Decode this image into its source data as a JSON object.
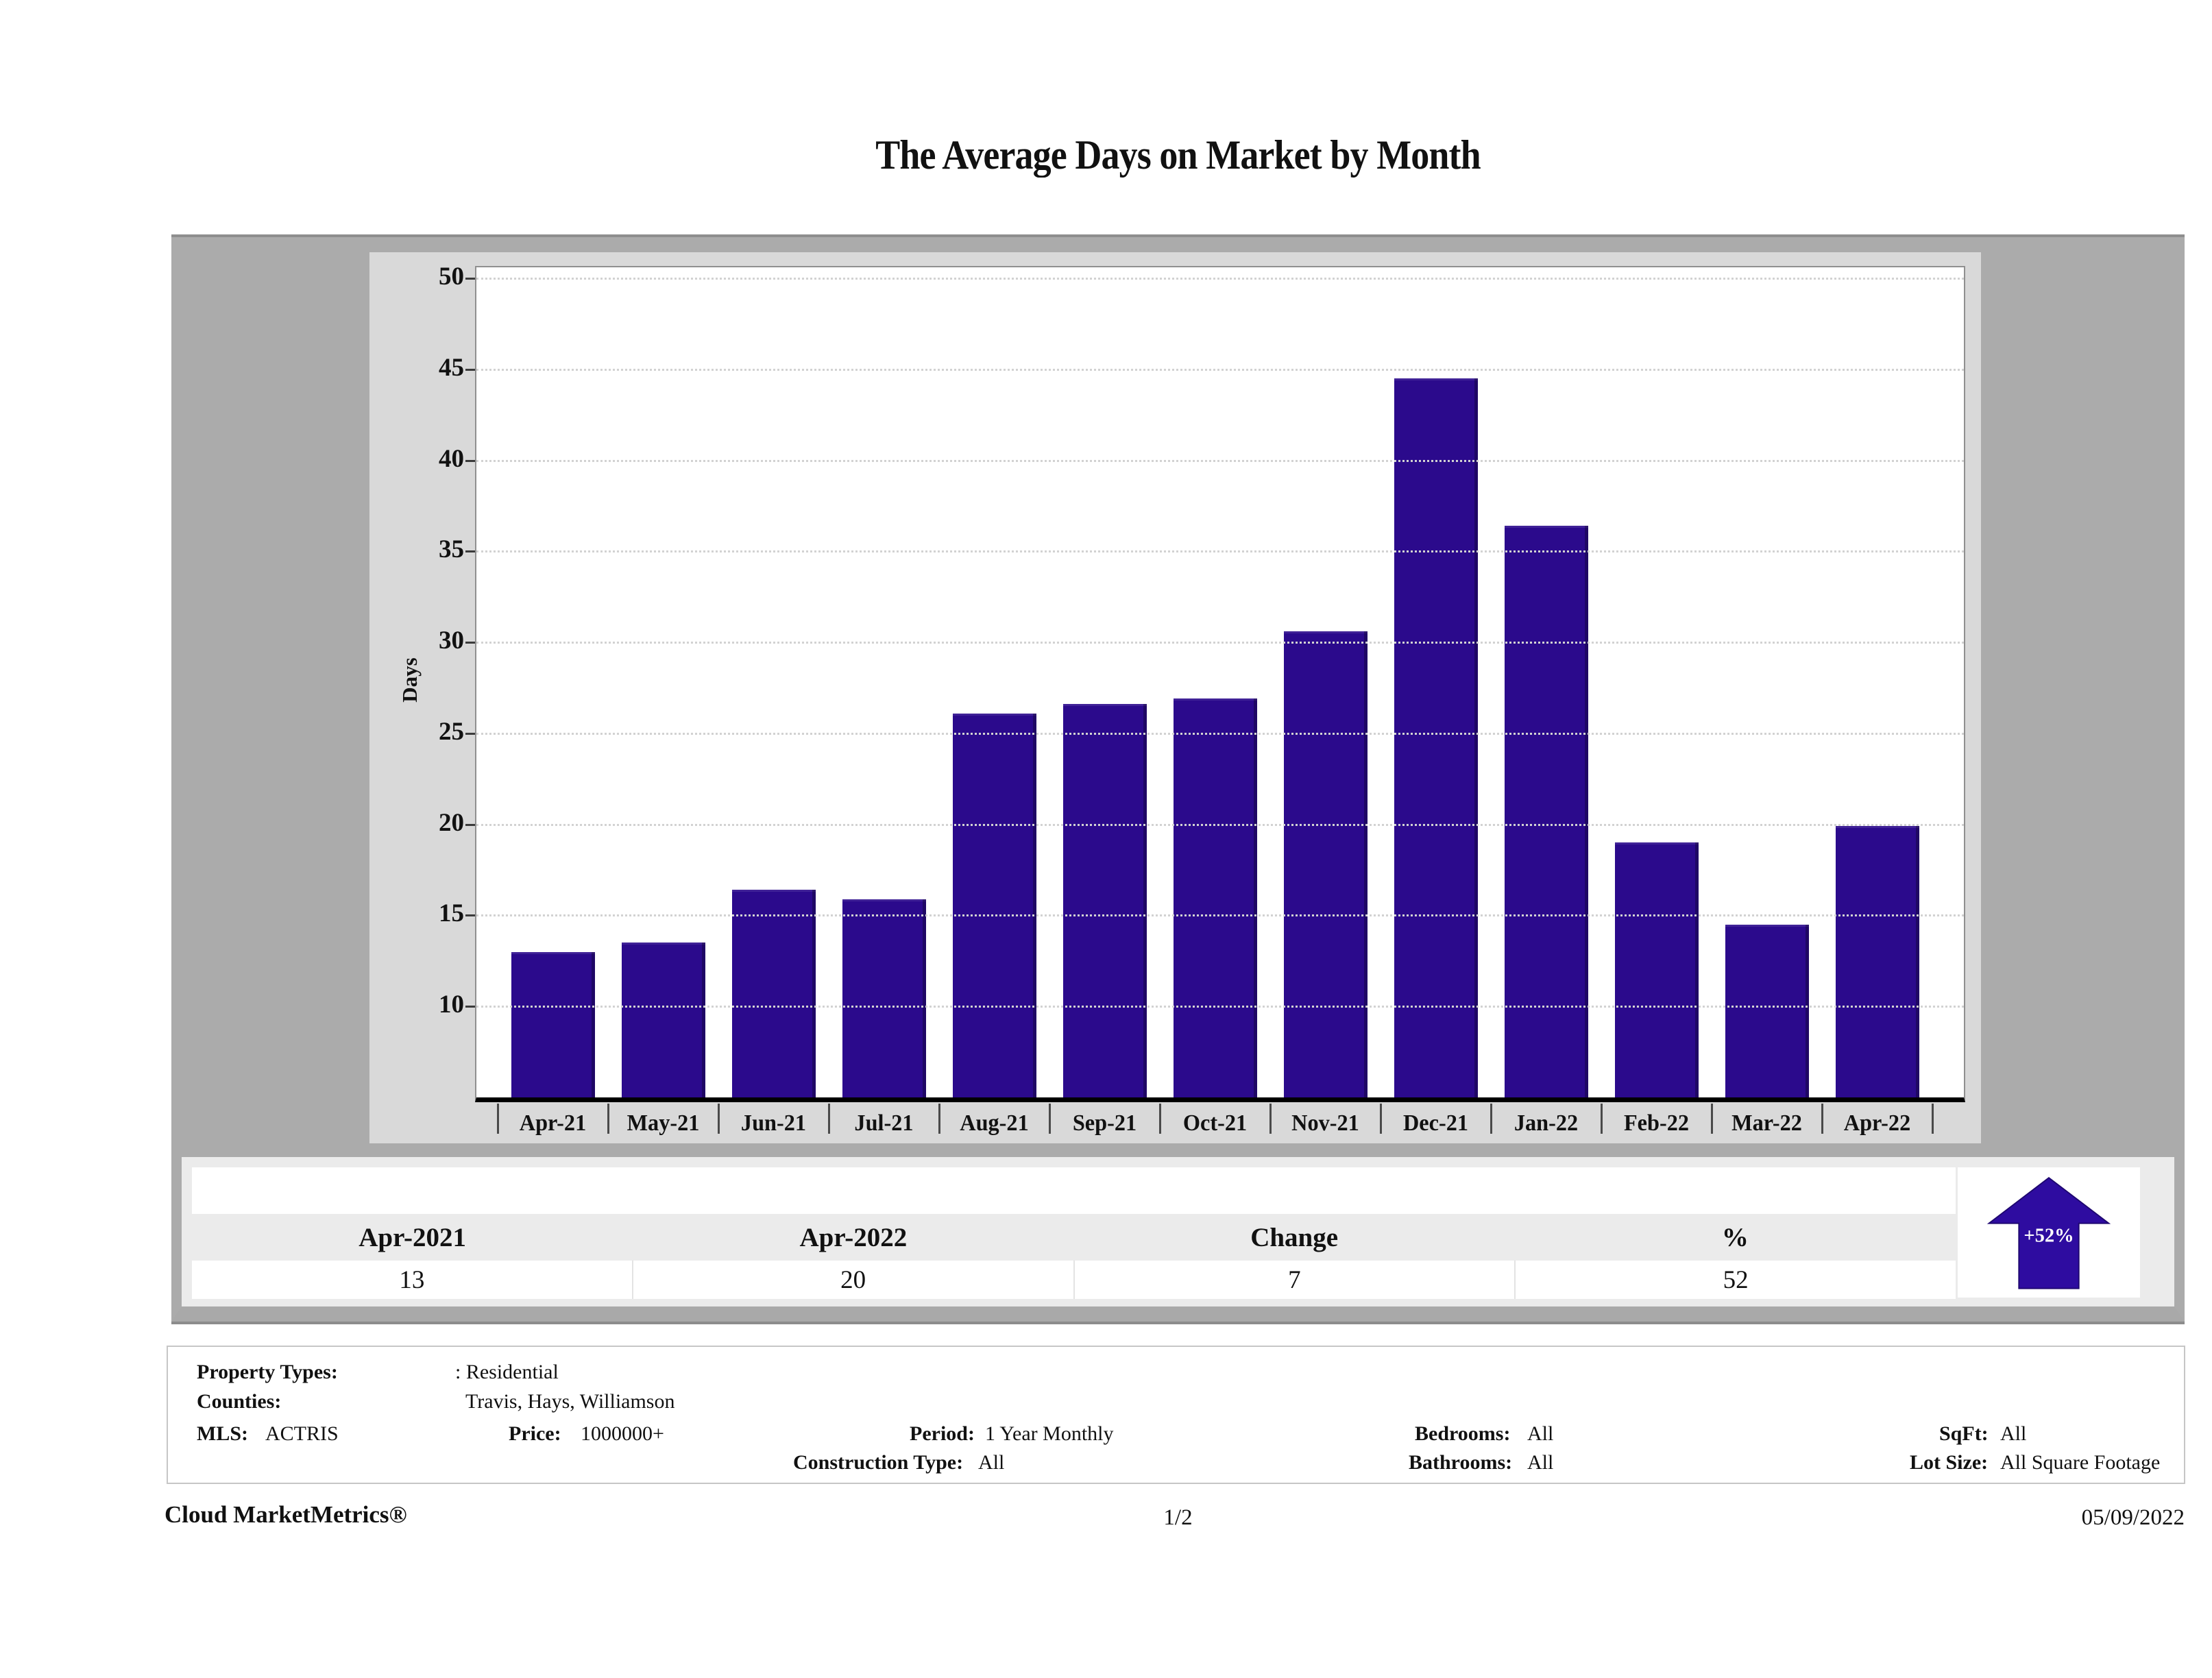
{
  "title": "The Average Days on Market by Month",
  "chart_data": {
    "type": "bar",
    "title": "The Average Days on Market by Month",
    "categories": [
      "Apr-21",
      "May-21",
      "Jun-21",
      "Jul-21",
      "Aug-21",
      "Sep-21",
      "Oct-21",
      "Nov-21",
      "Dec-21",
      "Jan-22",
      "Feb-22",
      "Mar-22",
      "Apr-22"
    ],
    "values": [
      13,
      13.5,
      16.4,
      15.9,
      26.1,
      26.6,
      26.9,
      30.6,
      44.5,
      36.4,
      19,
      14.5,
      19.9
    ],
    "xlabel": "",
    "ylabel": "Days",
    "yticks": [
      10,
      15,
      20,
      25,
      30,
      35,
      40,
      45,
      50
    ],
    "ylim": [
      5,
      50.6
    ],
    "grid": "horizontal-dotted",
    "legend": "none",
    "bar_color": "#2B0A8C"
  },
  "summary": {
    "headers": [
      "Apr-2021",
      "Apr-2022",
      "Change",
      "%"
    ],
    "values": [
      "13",
      "20",
      "7",
      "52"
    ],
    "arrow_label": "+52%",
    "arrow_direction": "up",
    "arrow_color": "#2E0CA0"
  },
  "filters": {
    "property_types_label": "Property Types:",
    "property_types": ": Residential",
    "counties_label": "Counties:",
    "counties": "Travis, Hays, Williamson",
    "mls_label": "MLS:",
    "mls": "ACTRIS",
    "price_label": "Price:",
    "price": "1000000+",
    "period_label": "Period:",
    "period": "1 Year Monthly",
    "construction_label": "Construction Type:",
    "construction": "All",
    "bedrooms_label": "Bedrooms:",
    "bedrooms": "All",
    "bathrooms_label": "Bathrooms:",
    "bathrooms": "All",
    "sqft_label": "SqFt:",
    "sqft": "All",
    "lot_label": "Lot Size:",
    "lot": "All Square Footage"
  },
  "page_footer": {
    "brand": "Cloud MarketMetrics®",
    "page": "1/2",
    "date": "05/09/2022"
  }
}
